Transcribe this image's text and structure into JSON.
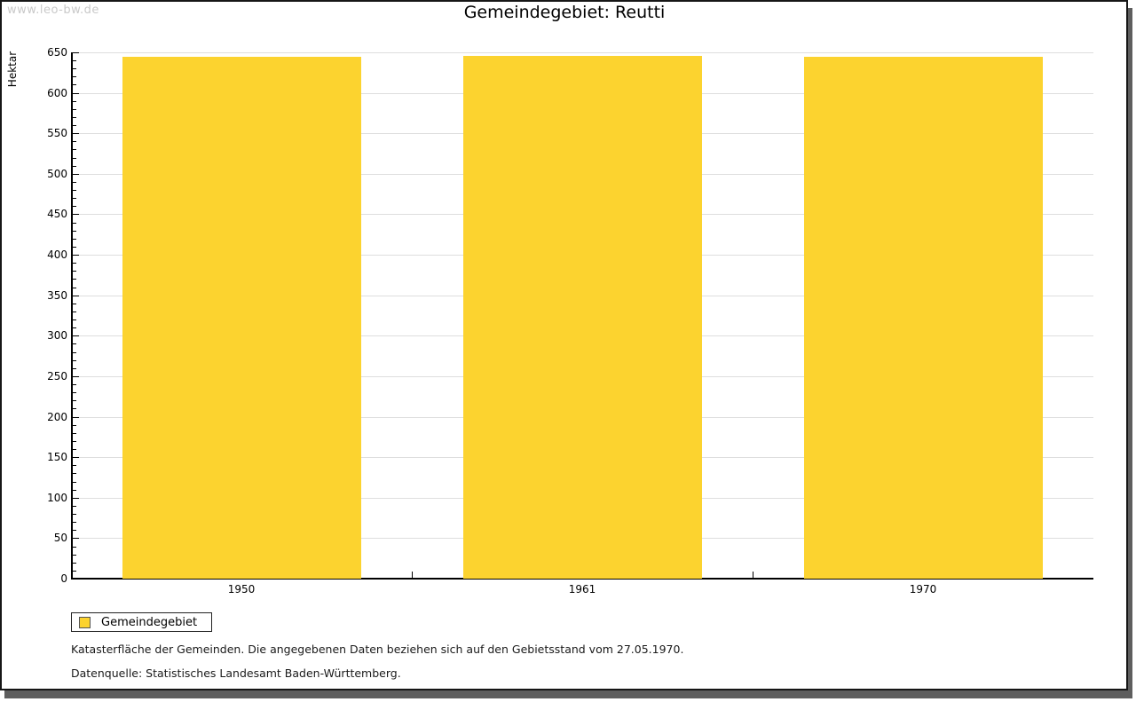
{
  "watermark": "www.leo-bw.de",
  "title": "Gemeindegebiet: Reutti",
  "chart_data": {
    "type": "bar",
    "title": "Gemeindegebiet: Reutti",
    "categories": [
      "1950",
      "1961",
      "1970"
    ],
    "series": [
      {
        "name": "Gemeindegebiet",
        "values": [
          645,
          646,
          645
        ]
      }
    ],
    "xlabel": "",
    "ylabel": "Hektar",
    "ylim": [
      0,
      650
    ],
    "ytick_major": 50,
    "ytick_minor": 10,
    "grid": "horizontal-only",
    "legend_position": "bottom-left",
    "bar_color": "#FCD32F"
  },
  "legend": {
    "label": "Gemeindegebiet",
    "swatch_color": "#FCD32F"
  },
  "footnotes": {
    "line1": "Katasterfläche der Gemeinden. Die angegebenen Daten beziehen sich auf den Gebietsstand vom 27.05.1970.",
    "line2": "Datenquelle: Statistisches Landesamt Baden-Württemberg."
  },
  "colors": {
    "bar": "#FCD32F",
    "gridline": "#DEDEDE",
    "axis": "#000000",
    "frame_border": "#161616",
    "frame_shadow": "#5E5E5E",
    "watermark": "#C9C9C9"
  }
}
